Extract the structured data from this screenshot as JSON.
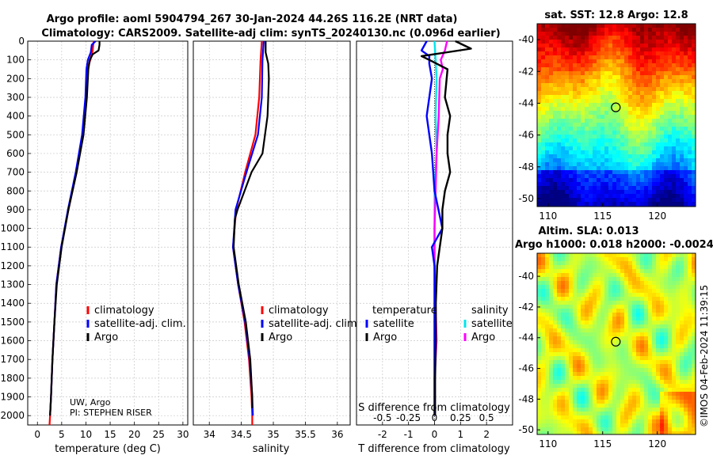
{
  "header": {
    "line1": "Argo profile: aoml 5904794_267 30-Jan-2024 44.26S 116.2E (NRT data)",
    "line2": "Climatology: CARS2009. Satellite-adj clim: synTS_20240130.nc (0.096d earlier)"
  },
  "credits": {
    "line1": "UW, Argo",
    "line2": "PI: STEPHEN RISER"
  },
  "watermark": "©IMOS 04-Feb-2024 11:39:15",
  "colors": {
    "climatology": "#ff0000",
    "satellite": "#0000ff",
    "argo": "#000000",
    "sal_satellite": "#00e5ee",
    "sal_argo": "#ff00ff"
  },
  "chart_data": [
    {
      "type": "line",
      "id": "temperature",
      "xlabel": "temperature (deg C)",
      "ylabel": "",
      "xlim": [
        -2,
        31
      ],
      "ylim": [
        2050,
        0
      ],
      "xticks": [
        "0",
        "5",
        "10",
        "15",
        "20",
        "25",
        "30"
      ],
      "yticks": [
        "0",
        "100",
        "200",
        "300",
        "400",
        "500",
        "600",
        "700",
        "800",
        "900",
        "1000",
        "1100",
        "1200",
        "1300",
        "1400",
        "1500",
        "1600",
        "1700",
        "1800",
        "1900",
        "2000"
      ],
      "legend": [
        "climatology",
        "satellite-adj. clim.",
        "Argo"
      ],
      "series": [
        {
          "name": "climatology",
          "depth": [
            0,
            50,
            100,
            150,
            300,
            500,
            700,
            900,
            1100,
            1300,
            1500,
            1700,
            1900,
            2000,
            2050
          ],
          "values": [
            11.6,
            11.4,
            10.9,
            10.3,
            10.0,
            9.3,
            8.0,
            6.4,
            4.9,
            3.9,
            3.5,
            3.1,
            2.8,
            2.6,
            2.5
          ]
        },
        {
          "name": "satellite-adj. clim.",
          "depth": [
            0,
            20,
            60,
            100,
            150,
            300,
            500,
            700,
            900,
            1100,
            1300,
            1500,
            1700,
            1900,
            2000
          ],
          "values": [
            12.0,
            11.2,
            11.0,
            10.4,
            10.1,
            9.9,
            9.2,
            7.9,
            6.3,
            4.9,
            3.9,
            3.5,
            3.1,
            2.8,
            2.6
          ]
        },
        {
          "name": "Argo",
          "depth": [
            0,
            20,
            50,
            70,
            100,
            150,
            300,
            500,
            700,
            900,
            1100,
            1300,
            1500,
            1700,
            1900,
            2000
          ],
          "values": [
            12.8,
            12.8,
            12.6,
            11.4,
            10.8,
            10.5,
            10.2,
            9.5,
            8.1,
            6.4,
            5.0,
            4.0,
            3.5,
            3.1,
            2.8,
            2.6
          ]
        }
      ]
    },
    {
      "type": "line",
      "id": "salinity",
      "xlabel": "salinity",
      "xlim": [
        33.75,
        36.2
      ],
      "ylim": [
        2050,
        0
      ],
      "xticks": [
        "34",
        "34.5",
        "35",
        "35.5",
        "36"
      ],
      "legend": [
        "climatology",
        "satellite-adj. clim.",
        "Argo"
      ],
      "series": [
        {
          "name": "climatology",
          "depth": [
            0,
            100,
            300,
            500,
            700,
            900,
            1100,
            1300,
            1500,
            1700,
            1900,
            2000,
            2050
          ],
          "values": [
            34.82,
            34.8,
            34.78,
            34.72,
            34.56,
            34.42,
            34.37,
            34.45,
            34.55,
            34.62,
            34.66,
            34.67,
            34.67
          ]
        },
        {
          "name": "satellite-adj. clim.",
          "depth": [
            0,
            100,
            300,
            500,
            700,
            900,
            1100,
            1300,
            1500,
            1700,
            1900,
            2000
          ],
          "values": [
            34.85,
            34.83,
            34.82,
            34.76,
            34.58,
            34.41,
            34.37,
            34.45,
            34.56,
            34.63,
            34.67,
            34.68
          ]
        },
        {
          "name": "Argo",
          "depth": [
            0,
            60,
            120,
            200,
            300,
            400,
            500,
            600,
            700,
            800,
            900,
            950,
            1100,
            1300,
            1500,
            1700,
            1900,
            1960
          ],
          "values": [
            34.88,
            34.88,
            34.92,
            34.93,
            34.92,
            34.91,
            34.87,
            34.83,
            34.66,
            34.55,
            34.44,
            34.4,
            34.38,
            34.46,
            34.57,
            34.64,
            34.67,
            34.67
          ]
        }
      ]
    },
    {
      "type": "line",
      "id": "difference",
      "xlabel": "T difference from climatology",
      "xlabel2": "S difference from climatology",
      "xlim": [
        -3.0,
        3.0
      ],
      "ylim": [
        2050,
        0
      ],
      "xticks": [
        "-2",
        "-1",
        "0",
        "1",
        "2"
      ],
      "xticks2": [
        "-0.5",
        "-0.25",
        "0",
        "0.25",
        "0.5"
      ],
      "legend_title_t": "temperature",
      "legend_title_s": "salinity",
      "legend": [
        "satellite",
        "Argo",
        "satellite",
        "Argo"
      ],
      "series": [
        {
          "name": "T satellite",
          "depth": [
            0,
            50,
            80,
            120,
            200,
            400,
            600,
            800,
            1000,
            1100,
            1200,
            1400,
            1600,
            1800,
            2000
          ],
          "values": [
            -0.3,
            -0.5,
            -0.2,
            -0.2,
            -0.1,
            -0.3,
            -0.1,
            0.0,
            0.3,
            -0.1,
            0.0,
            0.0,
            0.0,
            0.0,
            0.0
          ]
        },
        {
          "name": "T Argo",
          "depth": [
            0,
            40,
            80,
            100,
            150,
            300,
            400,
            500,
            600,
            700,
            800,
            900,
            1000,
            1200,
            1400,
            1600,
            1800,
            2000
          ],
          "values": [
            0.8,
            1.4,
            -0.5,
            -0.2,
            0.5,
            0.4,
            0.6,
            0.5,
            0.5,
            0.6,
            0.4,
            0.3,
            0.3,
            0.1,
            0.05,
            0.05,
            0.02,
            0.02
          ]
        },
        {
          "name": "S satellite",
          "depth": [
            0,
            100,
            200,
            400,
            600,
            800,
            1000,
            1200,
            1400,
            1600,
            1800,
            2000
          ],
          "values": [
            0.0,
            0.01,
            0.02,
            0.01,
            0.02,
            0.0,
            0.0,
            0.0,
            0.0,
            0.0,
            0.0,
            0.0
          ]
        },
        {
          "name": "S Argo",
          "depth": [
            0,
            50,
            100,
            150,
            200,
            400,
            600,
            800,
            1000,
            1200,
            1400,
            1600,
            1800,
            2000
          ],
          "values": [
            0.12,
            0.1,
            0.06,
            0.08,
            0.05,
            0.04,
            0.02,
            0.01,
            0.0,
            0.0,
            0.01,
            0.02,
            0.0,
            0.0
          ]
        }
      ]
    },
    {
      "type": "heatmap",
      "id": "sst",
      "title": "sat. SST: 12.8 Argo: 12.8",
      "xlim": [
        109,
        123.5
      ],
      "ylim": [
        -50.5,
        -39
      ],
      "xticks": [
        "110",
        "115",
        "120"
      ],
      "yticks": [
        "-40",
        "-42",
        "-44",
        "-46",
        "-48",
        "-50"
      ],
      "marker": {
        "lon": 116.2,
        "lat": -44.26
      }
    },
    {
      "type": "heatmap",
      "id": "sla",
      "title": "Altim. SLA: 0.013",
      "subtitle": "Argo h1000: 0.018 h2000: -0.0024",
      "xlim": [
        109,
        123.5
      ],
      "ylim": [
        -50.3,
        -38.5
      ],
      "xticks": [
        "110",
        "115",
        "120"
      ],
      "yticks": [
        "-40",
        "-42",
        "-44",
        "-46",
        "-48",
        "-50"
      ],
      "marker": {
        "lon": 116.2,
        "lat": -44.26
      }
    }
  ]
}
